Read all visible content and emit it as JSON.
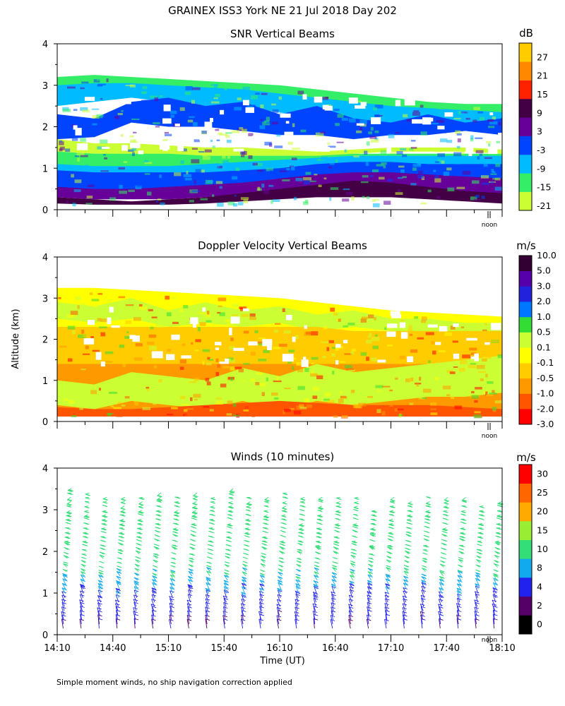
{
  "header": {
    "title": "GRAINEX ISS3 York NE  21 Jul 2018 Day 202"
  },
  "footer": {
    "note": "Simple moment winds, no ship navigation correction applied"
  },
  "y_axis_label": "Altitude (km)",
  "x_axis_label": "Time (UT)",
  "noon_label": "noon",
  "colors": {
    "background": "#ffffff",
    "axis": "#000000"
  },
  "chart_data": [
    {
      "id": "snr",
      "type": "heatmap",
      "title": "SNR Vertical Beams",
      "ylabel": "Altitude (km)",
      "ylim": [
        0,
        4
      ],
      "yticks": [
        "0",
        "1",
        "2",
        "3",
        "4"
      ],
      "xlim_hours": [
        14.1667,
        18.1667
      ],
      "show_x_tick_labels": false,
      "colorbar": {
        "unit": "dB",
        "colors": [
          "#ccff33",
          "#33ee66",
          "#00bbff",
          "#0044ff",
          "#660099",
          "#440044",
          "#ff2200",
          "#ff8800",
          "#ffcc00"
        ],
        "labels": [
          "-21",
          "-15",
          "-9",
          "-3",
          "3",
          "9",
          "15",
          "21",
          "27"
        ]
      },
      "layers": [
        {
          "class": 1,
          "top": [
            3.2,
            3.25,
            3.2,
            3.15,
            3.1,
            3.05,
            3.0,
            2.9,
            2.8,
            2.7,
            2.6,
            2.55,
            2.55
          ],
          "bottom": [
            2.9,
            2.95,
            3.0,
            2.95,
            2.9,
            2.8,
            2.7,
            2.6,
            2.5,
            2.45,
            2.4,
            2.35,
            2.3
          ]
        },
        {
          "class": 2,
          "top": [
            3.0,
            3.05,
            3.05,
            3.0,
            2.95,
            2.9,
            2.8,
            2.7,
            2.6,
            2.5,
            2.45,
            2.4,
            2.35
          ],
          "bottom": [
            2.5,
            2.6,
            2.7,
            2.6,
            2.5,
            2.45,
            2.35,
            2.2,
            2.1,
            2.0,
            1.95,
            1.9,
            1.85
          ]
        },
        {
          "class": 3,
          "top": [
            2.3,
            2.2,
            2.6,
            2.7,
            2.5,
            2.6,
            2.3,
            2.5,
            2.2,
            2.1,
            2.3,
            2.1,
            2.2
          ],
          "bottom": [
            1.7,
            1.75,
            2.1,
            2.0,
            2.0,
            1.9,
            1.8,
            1.8,
            1.7,
            1.8,
            1.8,
            1.9,
            1.8
          ]
        },
        {
          "class": 0,
          "top": [
            1.7,
            1.6,
            1.6,
            1.55,
            1.5,
            1.5,
            1.45,
            1.4,
            1.45,
            1.5,
            1.5,
            1.5,
            1.45
          ],
          "bottom": [
            1.4,
            1.35,
            1.3,
            1.3,
            1.3,
            1.3,
            1.3,
            1.3,
            1.35,
            1.4,
            1.4,
            1.4,
            1.35
          ]
        },
        {
          "class": 1,
          "top": [
            1.4,
            1.35,
            1.35,
            1.35,
            1.3,
            1.3,
            1.3,
            1.3,
            1.35,
            1.35,
            1.35,
            1.35,
            1.35
          ],
          "bottom": [
            1.05,
            1.0,
            1.0,
            1.0,
            1.0,
            1.05,
            1.1,
            1.15,
            1.2,
            1.2,
            1.2,
            1.2,
            1.2
          ]
        },
        {
          "class": 2,
          "top": [
            1.1,
            1.05,
            1.05,
            1.05,
            1.1,
            1.15,
            1.2,
            1.25,
            1.3,
            1.3,
            1.3,
            1.3,
            1.3
          ],
          "bottom": [
            0.85,
            0.8,
            0.8,
            0.8,
            0.8,
            0.85,
            0.9,
            1.0,
            1.05,
            1.05,
            1.0,
            1.0,
            1.0
          ]
        },
        {
          "class": 3,
          "top": [
            0.95,
            0.9,
            0.9,
            0.9,
            0.9,
            0.95,
            1.0,
            1.1,
            1.15,
            1.15,
            1.1,
            1.1,
            1.1
          ],
          "bottom": [
            0.5,
            0.45,
            0.45,
            0.45,
            0.45,
            0.45,
            0.5,
            0.55,
            0.6,
            0.6,
            0.6,
            0.6,
            0.6
          ]
        },
        {
          "class": 4,
          "top": [
            0.55,
            0.5,
            0.5,
            0.55,
            0.6,
            0.65,
            0.75,
            0.85,
            0.9,
            0.9,
            0.85,
            0.8,
            0.75
          ],
          "bottom": [
            0.3,
            0.25,
            0.25,
            0.25,
            0.3,
            0.35,
            0.4,
            0.4,
            0.4,
            0.4,
            0.4,
            0.35,
            0.3
          ]
        },
        {
          "class": 5,
          "top": [
            0.3,
            0.25,
            0.2,
            0.25,
            0.3,
            0.4,
            0.5,
            0.6,
            0.7,
            0.65,
            0.55,
            0.45,
            0.4
          ],
          "bottom": [
            0.15,
            0.12,
            0.12,
            0.12,
            0.15,
            0.2,
            0.25,
            0.3,
            0.3,
            0.3,
            0.25,
            0.2,
            0.15
          ]
        }
      ]
    },
    {
      "id": "doppler",
      "type": "heatmap",
      "title": "Doppler Velocity Vertical Beams",
      "ylabel": "Altitude (km)",
      "ylim": [
        0,
        4
      ],
      "yticks": [
        "0",
        "1",
        "2",
        "3",
        "4"
      ],
      "xlim_hours": [
        14.1667,
        18.1667
      ],
      "show_x_tick_labels": false,
      "colorbar": {
        "unit": "m/s",
        "colors": [
          "#ff0000",
          "#ff5500",
          "#ff9900",
          "#ffcc00",
          "#ffff00",
          "#ccff33",
          "#33dd33",
          "#0077ff",
          "#2222dd",
          "#5500aa",
          "#330033"
        ],
        "labels": [
          "-3.0",
          "-2.0",
          "-1.0",
          "-0.5",
          "-0.1",
          "0.1",
          "0.5",
          "1.0",
          "2.0",
          "3.0",
          "5.0",
          "10.0"
        ]
      },
      "layers": [
        {
          "class": 4,
          "top": [
            3.25,
            3.25,
            3.2,
            3.15,
            3.1,
            3.05,
            3.0,
            2.9,
            2.8,
            2.7,
            2.65,
            2.6,
            2.55
          ],
          "bottom": [
            2.3,
            2.3,
            2.3,
            2.3,
            2.3,
            2.3,
            2.3,
            2.3,
            2.2,
            2.2,
            2.2,
            2.2,
            2.2
          ]
        },
        {
          "class": 5,
          "top": [
            2.9,
            2.8,
            3.0,
            2.7,
            2.9,
            2.7,
            2.8,
            2.6,
            2.7,
            2.5,
            2.5,
            2.4,
            2.4
          ],
          "bottom": [
            2.5,
            2.4,
            2.5,
            2.3,
            2.4,
            2.3,
            2.4,
            2.2,
            2.3,
            2.2,
            2.1,
            2.1,
            2.1
          ]
        },
        {
          "class": 3,
          "top": [
            2.3,
            2.3,
            2.3,
            2.3,
            2.3,
            2.3,
            2.3,
            2.3,
            2.2,
            2.2,
            2.2,
            2.2,
            2.2
          ],
          "bottom": [
            1.4,
            1.4,
            1.4,
            1.4,
            1.4,
            1.4,
            1.4,
            1.4,
            1.4,
            1.4,
            1.4,
            1.4,
            1.4
          ]
        },
        {
          "class": 2,
          "top": [
            1.4,
            1.4,
            1.4,
            1.4,
            1.4,
            1.4,
            1.4,
            1.4,
            1.4,
            1.4,
            1.4,
            1.4,
            1.4
          ],
          "bottom": [
            0.12,
            0.12,
            0.12,
            0.12,
            0.12,
            0.12,
            0.12,
            0.12,
            0.12,
            0.12,
            0.12,
            0.12,
            0.12
          ]
        },
        {
          "class": 5,
          "top": [
            1.0,
            0.9,
            1.2,
            1.1,
            1.0,
            1.3,
            1.1,
            1.4,
            1.2,
            1.3,
            1.4,
            1.5,
            1.6
          ],
          "bottom": [
            0.4,
            0.3,
            0.5,
            0.4,
            0.3,
            0.5,
            0.3,
            0.5,
            0.4,
            0.5,
            0.6,
            0.6,
            0.7
          ]
        },
        {
          "class": 1,
          "top": [
            0.35,
            0.3,
            0.3,
            0.35,
            0.4,
            0.45,
            0.5,
            0.45,
            0.4,
            0.4,
            0.4,
            0.35,
            0.3
          ],
          "bottom": [
            0.12,
            0.12,
            0.12,
            0.12,
            0.12,
            0.12,
            0.12,
            0.12,
            0.12,
            0.12,
            0.12,
            0.12,
            0.12
          ]
        }
      ]
    },
    {
      "id": "winds",
      "type": "barbs",
      "title": "Winds (10 minutes)",
      "ylabel": "Altitude (km)",
      "xlabel": "Time (UT)",
      "ylim": [
        0,
        4
      ],
      "yticks": [
        "0",
        "1",
        "2",
        "3",
        "4"
      ],
      "xlim_hours": [
        14.1667,
        18.1667
      ],
      "xticks": [
        "14:10",
        "14:40",
        "15:10",
        "15:40",
        "16:10",
        "16:40",
        "17:10",
        "17:40",
        "18:10"
      ],
      "profile_interval_minutes": 10,
      "colorbar": {
        "unit": "m/s",
        "colors": [
          "#000000",
          "#550066",
          "#2222ee",
          "#11aaee",
          "#33dd77",
          "#99ee33",
          "#ffaa00",
          "#ff6600",
          "#ff0000"
        ],
        "labels": [
          "0",
          "2",
          "4",
          "8",
          "10",
          "15",
          "20",
          "25",
          "30"
        ]
      },
      "profile": {
        "altitude_km": [
          0.2,
          0.4,
          0.6,
          0.8,
          1.0,
          1.2,
          1.4,
          1.6,
          1.8,
          2.0,
          2.2,
          2.4,
          2.6,
          2.8,
          3.0,
          3.2,
          3.4
        ],
        "speed_ms": [
          4,
          5,
          6,
          7,
          8,
          9,
          10,
          11,
          12,
          13,
          13,
          14,
          14,
          13,
          13,
          12,
          12
        ],
        "direction_deg": [
          200,
          210,
          220,
          225,
          230,
          240,
          250,
          255,
          260,
          260,
          265,
          265,
          270,
          270,
          275,
          275,
          280
        ]
      },
      "top_km": [
        3.6,
        3.5,
        3.4,
        3.4,
        3.3,
        3.5,
        3.3,
        3.5,
        3.4,
        3.6,
        3.4,
        3.3,
        3.5,
        3.3,
        3.4,
        3.4,
        3.3,
        3.0,
        3.3,
        3.2,
        3.4,
        3.4,
        3.3,
        3.1,
        3.2
      ]
    }
  ]
}
